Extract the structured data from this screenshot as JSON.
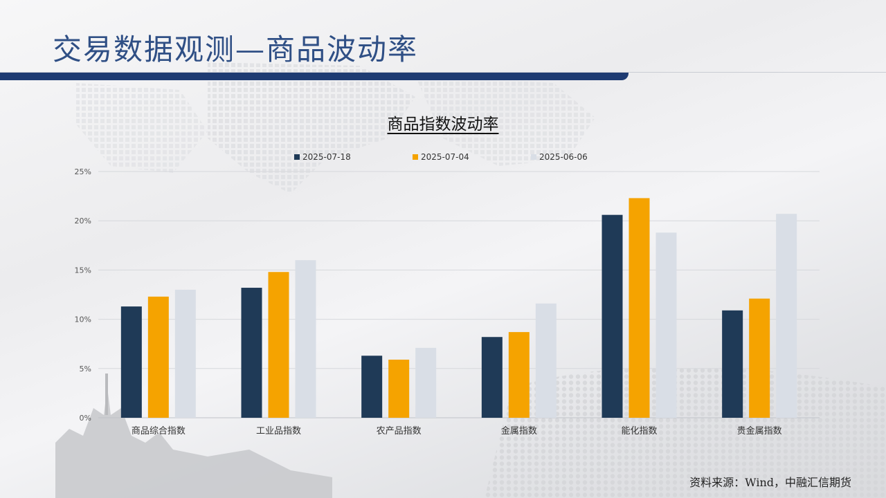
{
  "slide": {
    "title": "交易数据观测—商品波动率",
    "source": "资料来源：Wind，中融汇信期货"
  },
  "colors": {
    "title": "#2f4f85",
    "title_bar": "#1e3b72",
    "series": [
      "#1f3a57",
      "#f5a300",
      "#d9dee6"
    ]
  },
  "chart_data": {
    "type": "bar",
    "title": "商品指数波动率",
    "categories": [
      "商品综合指数",
      "工业品指数",
      "农产品指数",
      "金属指数",
      "能化指数",
      "贵金属指数"
    ],
    "series": [
      {
        "name": "2025-07-18",
        "values": [
          11.3,
          13.2,
          6.3,
          8.2,
          20.6,
          10.9
        ]
      },
      {
        "name": "2025-07-04",
        "values": [
          12.3,
          14.8,
          5.9,
          8.7,
          22.3,
          12.1
        ]
      },
      {
        "name": "2025-06-06",
        "values": [
          13.0,
          16.0,
          7.1,
          11.6,
          18.8,
          20.7
        ]
      }
    ],
    "yticks": [
      "0%",
      "5%",
      "10%",
      "15%",
      "20%",
      "25%"
    ],
    "ylim": [
      0,
      25
    ],
    "grid": true,
    "legend_position": "top"
  }
}
